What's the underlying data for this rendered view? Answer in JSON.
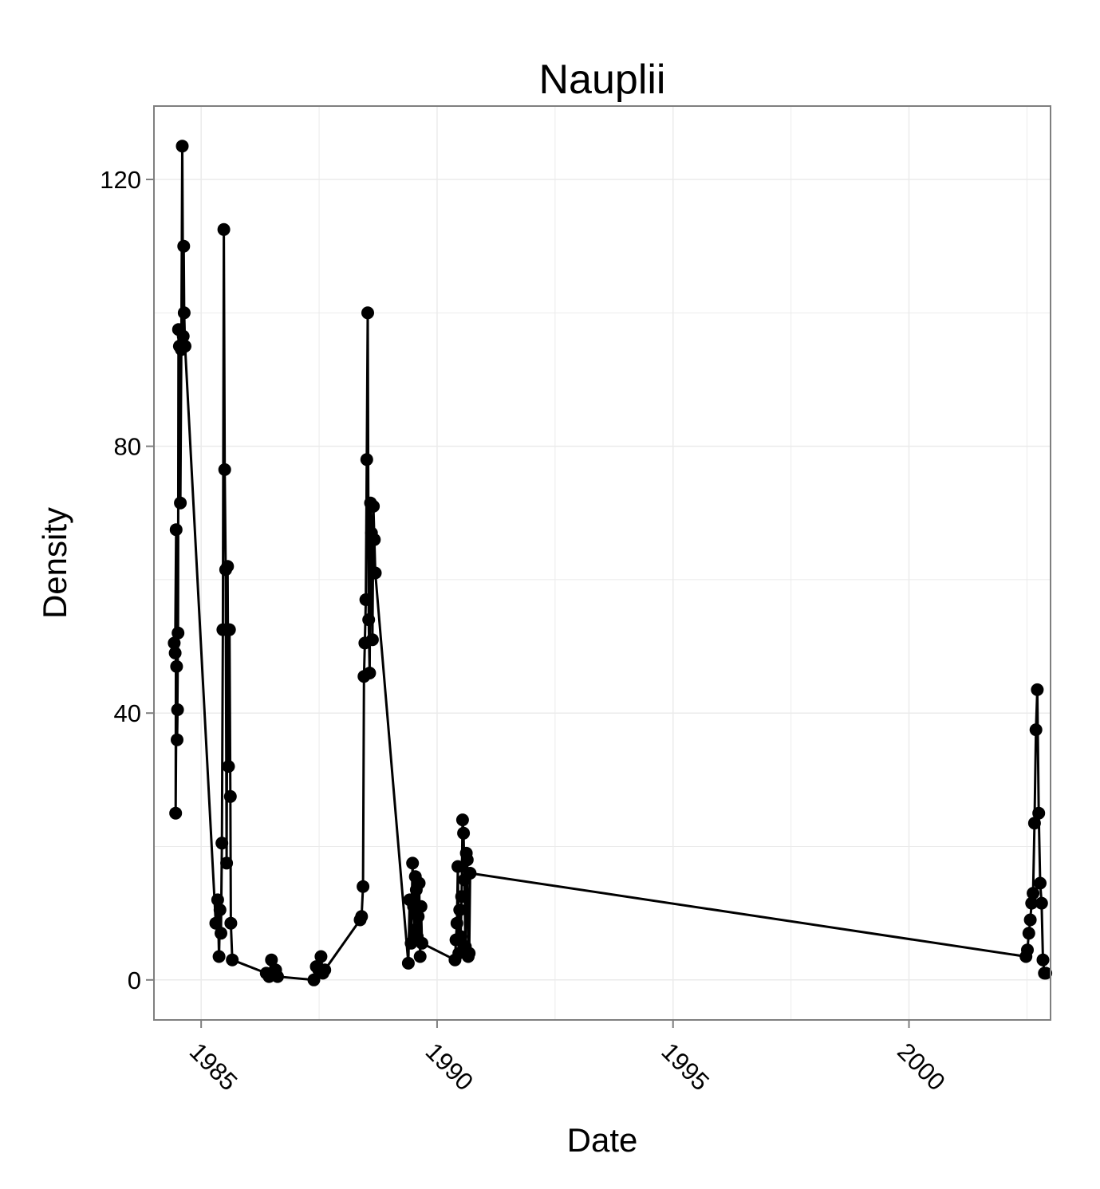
{
  "chart_data": {
    "type": "line",
    "title": "Nauplii",
    "xlabel": "Date",
    "ylabel": "Density",
    "xlim": [
      1984.0,
      2003.0
    ],
    "ylim": [
      -6,
      131
    ],
    "x_ticks": [
      1985,
      1990,
      1995,
      2000
    ],
    "y_ticks": [
      0,
      40,
      80,
      120
    ],
    "grid": true,
    "markers": true,
    "colors": {
      "series": "#000000",
      "grid": "#ebebeb",
      "panel_border": "#7f7f7f"
    },
    "series": [
      {
        "x": [
          1984.43,
          1984.45,
          1984.47,
          1984.46,
          1984.48,
          1984.5,
          1984.49,
          1984.51,
          1984.52,
          1984.54,
          1984.56,
          1984.58,
          1984.6,
          1984.62,
          1984.63,
          1984.64,
          1984.66,
          1985.31,
          1985.35,
          1985.38,
          1985.4,
          1985.42,
          1985.44,
          1985.46,
          1985.48,
          1985.5,
          1985.52,
          1985.54,
          1985.56,
          1985.58,
          1985.6,
          1985.62,
          1985.63,
          1985.66,
          1986.38,
          1986.44,
          1986.49,
          1986.52,
          1986.58,
          1986.62,
          1987.39,
          1987.44,
          1987.49,
          1987.54,
          1987.58,
          1987.62,
          1988.37,
          1988.4,
          1988.43,
          1988.45,
          1988.47,
          1988.49,
          1988.51,
          1988.53,
          1988.55,
          1988.57,
          1988.59,
          1988.61,
          1988.63,
          1988.65,
          1988.67,
          1988.69,
          1989.39,
          1989.42,
          1989.45,
          1989.48,
          1989.5,
          1989.52,
          1989.54,
          1989.56,
          1989.58,
          1989.6,
          1989.62,
          1989.64,
          1989.66,
          1989.68,
          1990.38,
          1990.4,
          1990.42,
          1990.44,
          1990.46,
          1990.48,
          1990.5,
          1990.52,
          1990.54,
          1990.56,
          1990.58,
          1990.6,
          1990.62,
          1990.64,
          1990.66,
          1990.68,
          1990.7,
          2002.48,
          2002.51,
          2002.54,
          2002.57,
          2002.6,
          2002.63,
          2002.66,
          2002.69,
          2002.72,
          2002.75,
          2002.78,
          2002.81,
          2002.84,
          2002.87,
          2002.9
        ],
        "y": [
          50.5,
          49.0,
          67.5,
          25.0,
          47.0,
          40.5,
          36.0,
          52.0,
          97.5,
          95.0,
          71.5,
          94.5,
          125.0,
          96.5,
          110.0,
          100.0,
          95.0,
          8.5,
          12.0,
          3.5,
          10.5,
          7.0,
          20.5,
          52.5,
          112.5,
          76.5,
          61.5,
          17.5,
          62.0,
          32.0,
          52.5,
          27.5,
          8.5,
          3.0,
          1.0,
          0.5,
          3.0,
          1.0,
          1.5,
          0.5,
          0.0,
          2.0,
          1.5,
          3.5,
          1.0,
          1.5,
          9.0,
          9.5,
          14.0,
          45.5,
          50.5,
          57.0,
          78.0,
          100.0,
          54.0,
          46.0,
          71.5,
          67.0,
          51.0,
          71.0,
          66.0,
          61.0,
          2.5,
          12.0,
          5.5,
          17.5,
          11.0,
          7.5,
          15.5,
          13.5,
          6.5,
          9.5,
          14.5,
          3.5,
          11.0,
          5.5,
          3.0,
          6.0,
          8.5,
          17.0,
          4.0,
          10.5,
          6.5,
          12.5,
          24.0,
          22.0,
          15.0,
          5.0,
          19.0,
          18.0,
          3.5,
          4.0,
          16.0,
          3.5,
          4.5,
          7.0,
          9.0,
          11.5,
          13.0,
          23.5,
          37.5,
          43.5,
          25.0,
          14.5,
          11.5,
          3.0,
          1.0,
          1.0
        ]
      }
    ]
  }
}
